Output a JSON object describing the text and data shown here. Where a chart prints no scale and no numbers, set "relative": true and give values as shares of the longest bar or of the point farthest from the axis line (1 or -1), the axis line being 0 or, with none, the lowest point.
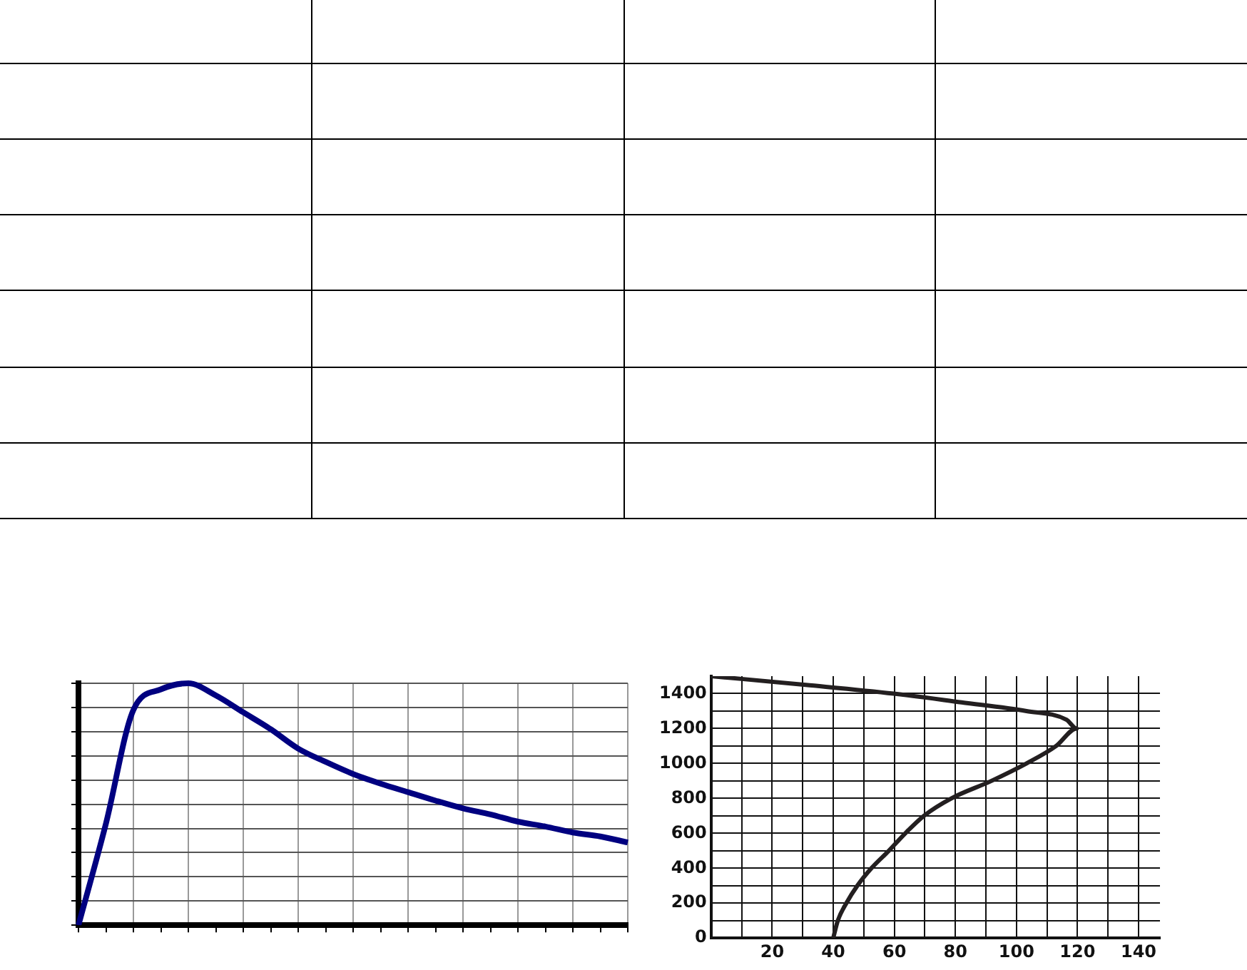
{
  "chart_data": [
    {
      "type": "line",
      "relative": true,
      "categories": [
        null,
        null,
        null,
        null,
        null,
        null,
        null,
        null,
        null,
        null,
        null,
        null,
        null,
        null,
        null,
        null,
        null,
        null,
        null,
        null,
        null
      ],
      "grid": true,
      "marker": "none",
      "line_style": "solid",
      "series": [
        {
          "color": "#000080",
          "values": [
            0,
            0.42,
            0.89,
            0.975,
            1,
            0.95,
            0.88,
            0.81,
            0.73,
            0.675,
            0.625,
            0.585,
            0.55,
            0.515,
            0.483,
            0.458,
            0.428,
            0.408,
            0.383,
            0.367,
            0.342
          ]
        }
      ]
    },
    {
      "type": "line",
      "xlim": [
        0,
        147
      ],
      "ylim": [
        0,
        1500
      ],
      "grid": true,
      "marker": "none",
      "line_style": "solid",
      "xticks": [
        {
          "value": 0,
          "label": null
        },
        {
          "value": 10,
          "label": null
        },
        20,
        {
          "value": 30,
          "label": null
        },
        40,
        {
          "value": 50,
          "label": null
        },
        60,
        {
          "value": 70,
          "label": null
        },
        80,
        {
          "value": 90,
          "label": null
        },
        100,
        {
          "value": 110,
          "label": null
        },
        120,
        {
          "value": 130,
          "label": null
        },
        140
      ],
      "yticks": [
        0,
        {
          "value": 100,
          "label": null
        },
        200,
        {
          "value": 300,
          "label": null
        },
        400,
        {
          "value": 500,
          "label": null
        },
        600,
        {
          "value": 700,
          "label": null
        },
        800,
        {
          "value": 900,
          "label": null
        },
        1000,
        {
          "value": 1100,
          "label": null
        },
        1200,
        {
          "value": 1300,
          "label": null
        },
        1400
      ],
      "series": [
        {
          "color": "#231f20",
          "x": [
            40,
            41.5,
            44.3,
            47.9,
            52.5,
            58.2,
            63.6,
            69.7,
            78.7,
            91.8,
            103.3,
            113,
            119.7,
            116.4,
            103.3,
            82,
            59.8,
            31,
            0
          ],
          "values": [
            0,
            100,
            200,
            300,
            400,
            500,
            600,
            700,
            800,
            900,
            1000,
            1100,
            1200,
            1250,
            1300,
            1350,
            1400,
            1450,
            1500
          ]
        }
      ]
    }
  ]
}
